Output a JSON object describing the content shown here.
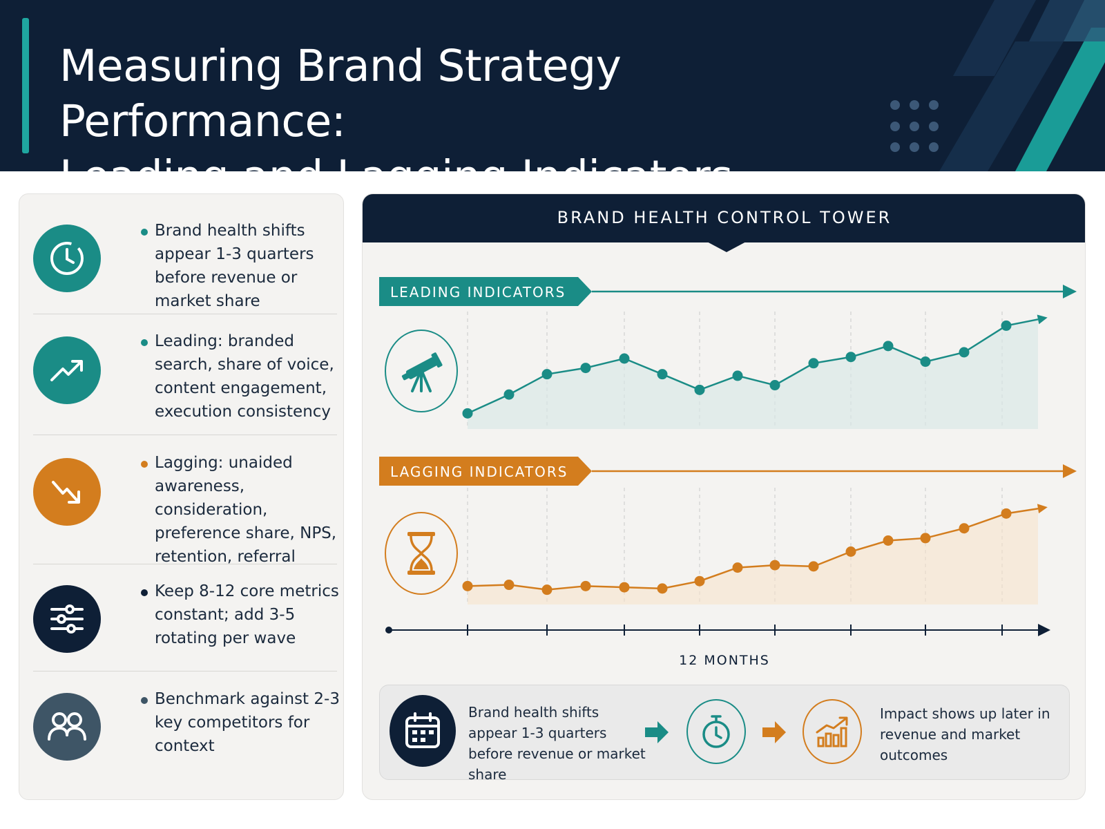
{
  "header": {
    "title_line1": "Measuring Brand Strategy Performance:",
    "title_line2": "Leading and Lagging Indicators"
  },
  "colors": {
    "navy": "#0e1f36",
    "teal": "#1a8c86",
    "orange": "#d37d1e",
    "slate": "#3e5566"
  },
  "sidebar": {
    "items": [
      {
        "icon": "clock-icon",
        "color": "teal",
        "text": "Brand health shifts appear 1-3 quarters before revenue or market share"
      },
      {
        "icon": "trending-up-icon",
        "color": "teal",
        "text": "Leading: branded search, share of voice, content engagement, execution consistency"
      },
      {
        "icon": "trending-down-icon",
        "color": "orange",
        "text": "Lagging: unaided awareness, consideration, preference share, NPS, retention, referral"
      },
      {
        "icon": "sliders-icon",
        "color": "navy",
        "text": "Keep 8-12 core metrics constant; add 3-5 rotating per wave"
      },
      {
        "icon": "people-icon",
        "color": "slate",
        "text": "Benchmark against 2-3 key competitors for context"
      }
    ]
  },
  "tower": {
    "title": "BRAND HEALTH CONTROL TOWER",
    "leading_label": "LEADING INDICATORS",
    "lagging_label": "LAGGING INDICATORS",
    "timeline_label": "12 MONTHS"
  },
  "chart_data": [
    {
      "type": "line",
      "name": "LEADING INDICATORS",
      "color": "#1a8c86",
      "x": [
        1,
        2,
        3,
        4,
        5,
        6,
        7,
        8,
        9,
        10,
        11,
        12,
        13,
        14,
        15,
        16
      ],
      "values": [
        1.0,
        2.2,
        3.5,
        3.9,
        4.5,
        3.5,
        2.5,
        3.4,
        2.8,
        4.2,
        4.6,
        5.3,
        4.3,
        4.9,
        6.6,
        7.0
      ]
    },
    {
      "type": "line",
      "name": "LAGGING INDICATORS",
      "color": "#d37d1e",
      "x": [
        1,
        2,
        3,
        4,
        5,
        6,
        7,
        8,
        9,
        10,
        11,
        12,
        13,
        14,
        15,
        16
      ],
      "values": [
        1.5,
        1.6,
        1.2,
        1.5,
        1.4,
        1.3,
        1.9,
        3.0,
        3.2,
        3.1,
        4.3,
        5.2,
        5.4,
        6.2,
        7.4,
        7.8
      ]
    }
  ],
  "flow": {
    "left_text": "Brand health shifts appear 1-3 quarters before revenue or market share",
    "right_text": "Impact shows up later in revenue and market outcomes"
  }
}
